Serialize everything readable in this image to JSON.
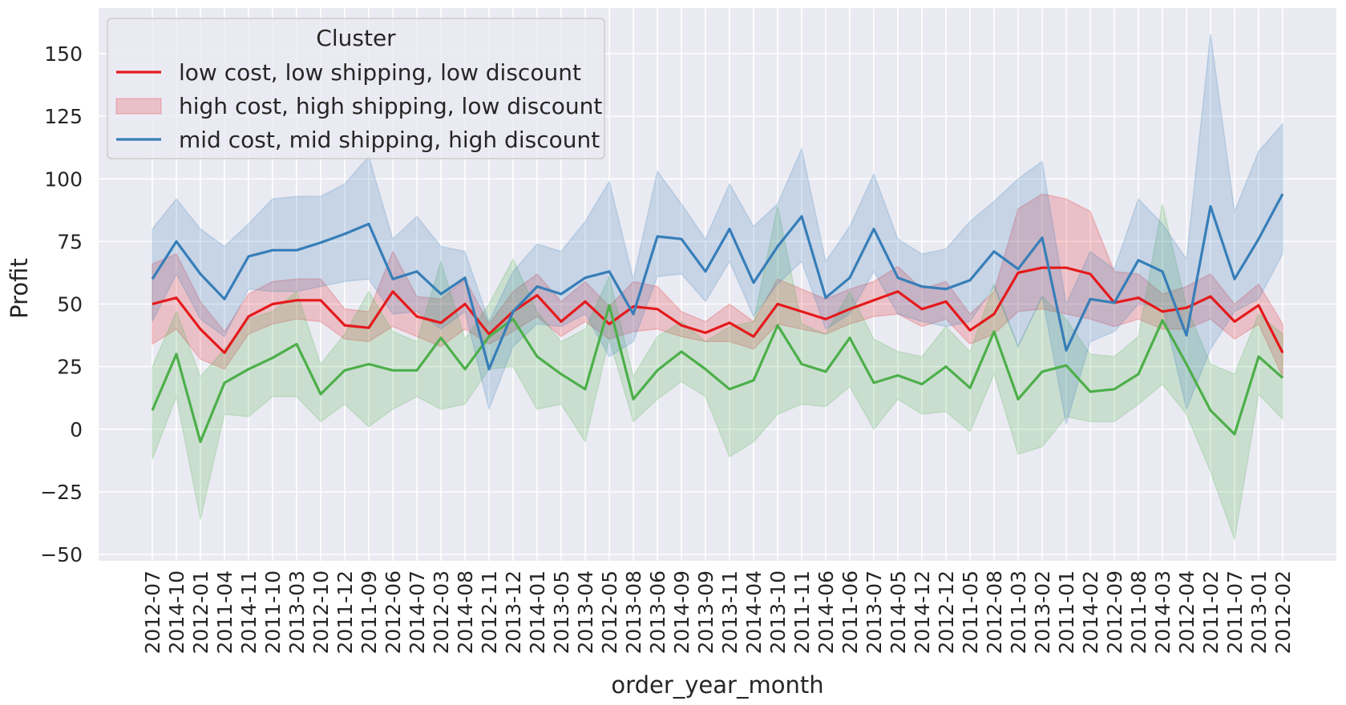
{
  "chart_data": {
    "type": "line",
    "xlabel": "order_year_month",
    "ylabel": "Profit",
    "ylim": [
      -55,
      167
    ],
    "yticks": [
      150,
      125,
      100,
      75,
      50,
      25,
      0,
      -25,
      -50
    ],
    "ytick_labels": [
      "150",
      "125",
      "100",
      "75",
      "50",
      "25",
      "0",
      "−25",
      "−50"
    ],
    "grid": true,
    "legend": {
      "title": "Cluster",
      "placement": "top-left",
      "entries": [
        {
          "label": "low cost, low shipping, low discount",
          "style": "line",
          "color": "#e41a1c"
        },
        {
          "label": "high cost, high shipping, low discount",
          "style": "band",
          "color": "#e41a1c"
        },
        {
          "label": "mid cost, mid shipping, high discount",
          "style": "line",
          "color": "#377eb8"
        }
      ]
    },
    "categories": [
      "2012-07",
      "2014-10",
      "2012-01",
      "2011-04",
      "2014-11",
      "2011-10",
      "2013-03",
      "2012-10",
      "2011-12",
      "2011-09",
      "2012-06",
      "2014-07",
      "2012-03",
      "2014-08",
      "2012-11",
      "2013-12",
      "2014-01",
      "2013-05",
      "2013-04",
      "2012-05",
      "2013-08",
      "2013-06",
      "2014-09",
      "2013-09",
      "2013-11",
      "2014-04",
      "2013-10",
      "2011-11",
      "2014-06",
      "2011-06",
      "2013-07",
      "2014-05",
      "2014-12",
      "2012-12",
      "2011-05",
      "2012-08",
      "2011-03",
      "2013-02",
      "2011-01",
      "2014-02",
      "2012-09",
      "2011-08",
      "2014-03",
      "2012-04",
      "2011-02",
      "2011-07",
      "2013-01",
      "2012-02"
    ],
    "series": [
      {
        "name": "low cost, low shipping, low discount",
        "color": "#e41a1c",
        "values": [
          50,
          52.5,
          40,
          30.5,
          45,
          50,
          51.5,
          51.5,
          41.5,
          40.5,
          55,
          45,
          42.5,
          50,
          38,
          47,
          53.5,
          43,
          51,
          42,
          49,
          48,
          41.5,
          38.5,
          42.5,
          37,
          50,
          47,
          44,
          48,
          51.5,
          55,
          48,
          51,
          39.5,
          46,
          62.5,
          64.5,
          64.5,
          62,
          50.5,
          52.5,
          47,
          48.5,
          53,
          43,
          49.5,
          30.5
        ],
        "ci_low": [
          34,
          40,
          28,
          24,
          38,
          42,
          44,
          43,
          36,
          35,
          41,
          37,
          33,
          40,
          34,
          39,
          45,
          37,
          43,
          36,
          39,
          40,
          37,
          35,
          35,
          32,
          42,
          40,
          38,
          42,
          45,
          46,
          41,
          44,
          34,
          38,
          47,
          48,
          46,
          44,
          41,
          44,
          40,
          40,
          44,
          36,
          42,
          21
        ],
        "ci_high": [
          66,
          70,
          51,
          39,
          54,
          59,
          60,
          60,
          48,
          47,
          71,
          53,
          52,
          60,
          42,
          55,
          62,
          51,
          59,
          49,
          59,
          57,
          47,
          43,
          50,
          43,
          60,
          56,
          52,
          56,
          59,
          65,
          56,
          59,
          46,
          55,
          88,
          94,
          92,
          87,
          63,
          62,
          54,
          57,
          62,
          50,
          58,
          42
        ]
      },
      {
        "color": "#4daf4a",
        "values": [
          7.5,
          30,
          -5,
          18.5,
          24,
          28.5,
          34,
          14,
          23.5,
          26,
          23.5,
          23.5,
          36.5,
          24,
          37,
          44,
          29,
          22,
          16,
          49.5,
          12,
          23.5,
          31,
          24,
          16,
          19.5,
          41.5,
          26,
          23,
          36.5,
          18.5,
          21.5,
          18,
          25,
          16.5,
          39,
          12,
          23,
          25.5,
          15,
          16,
          22,
          43.5,
          26,
          7.5,
          -2,
          29,
          20.5
        ],
        "ci_low": [
          -12,
          13,
          -36,
          6,
          5,
          13,
          13,
          3,
          10,
          1,
          8,
          13,
          8,
          10,
          24,
          25,
          8,
          10,
          -5,
          36,
          3,
          12,
          19,
          13,
          -11,
          -5,
          6,
          10,
          9,
          17,
          0,
          12,
          6,
          7,
          -1,
          22,
          -10,
          -7,
          5,
          3,
          3,
          10,
          18,
          6,
          -17,
          -44,
          14,
          4
        ],
        "ci_high": [
          25,
          47,
          21,
          32,
          44,
          47,
          55,
          26,
          38,
          55,
          39,
          35,
          67,
          36,
          50,
          68,
          47,
          35,
          40,
          61,
          21,
          37,
          43,
          35,
          41,
          43,
          89,
          42,
          38,
          55,
          36,
          31,
          29,
          41,
          31,
          58,
          33,
          53,
          44,
          30,
          29,
          37,
          90,
          49,
          26,
          22,
          46,
          38
        ]
      },
      {
        "name": "mid cost, mid shipping, high discount",
        "color": "#377eb8",
        "values": [
          60,
          75,
          62,
          52,
          69,
          71.5,
          71.5,
          74.5,
          78,
          82,
          60,
          63,
          54,
          60.5,
          24,
          47,
          57,
          54,
          60.5,
          63,
          46,
          77,
          76,
          63,
          80,
          58.5,
          73,
          85,
          52.5,
          60.5,
          80,
          60.5,
          57,
          56,
          59.5,
          71,
          64,
          76.5,
          31.5,
          52,
          50.5,
          67.5,
          63,
          37.5,
          89,
          60,
          76,
          94
        ],
        "ci_low": [
          43,
          62,
          44,
          37,
          56,
          55,
          55,
          57,
          59,
          60,
          46,
          47,
          40,
          47,
          8,
          33,
          42,
          41,
          46,
          29,
          35,
          61,
          62,
          51,
          67,
          45,
          58,
          67,
          40,
          46,
          63,
          46,
          43,
          41,
          43,
          57,
          33,
          53,
          2,
          35,
          39,
          50,
          49,
          8,
          32,
          47,
          52,
          70
        ],
        "ci_high": [
          80,
          92,
          80,
          73,
          82,
          92,
          93,
          93,
          98,
          109,
          76,
          85,
          73,
          71,
          43,
          63,
          74,
          71,
          83,
          99,
          60,
          103,
          90,
          76,
          98,
          81,
          90,
          112,
          67,
          81,
          102,
          76,
          70,
          72,
          83,
          91,
          100,
          107,
          50,
          71,
          64,
          92,
          82,
          68,
          158,
          87,
          111,
          122
        ]
      }
    ]
  }
}
